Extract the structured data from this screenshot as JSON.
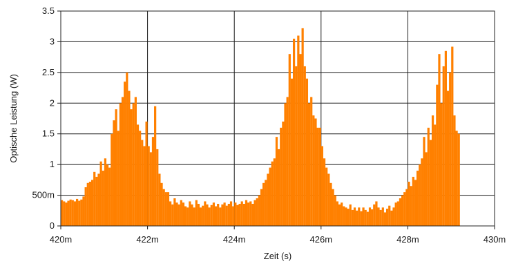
{
  "chart_data": {
    "type": "bar",
    "title": "",
    "xlabel": "Zeit (s)",
    "ylabel": "Optische Leistung (W)",
    "xlim": [
      0.42,
      0.43
    ],
    "ylim": [
      0,
      3.5
    ],
    "grid": true,
    "xticks": [
      {
        "value": 0.42,
        "label": "420m"
      },
      {
        "value": 0.422,
        "label": "422m"
      },
      {
        "value": 0.424,
        "label": "424m"
      },
      {
        "value": 0.426,
        "label": "426m"
      },
      {
        "value": 0.428,
        "label": "428m"
      },
      {
        "value": 0.43,
        "label": "430m"
      }
    ],
    "yticks": [
      {
        "value": 0,
        "label": "0"
      },
      {
        "value": 0.5,
        "label": "500m"
      },
      {
        "value": 1,
        "label": "1"
      },
      {
        "value": 1.5,
        "label": "1.5"
      },
      {
        "value": 2,
        "label": "2"
      },
      {
        "value": 2.5,
        "label": "2.5"
      },
      {
        "value": 3,
        "label": "3"
      },
      {
        "value": 3.5,
        "label": "3.5"
      }
    ],
    "series": [
      {
        "color": "#ff8000",
        "x_start": 0.42,
        "x_step": 5e-05,
        "values": [
          0.42,
          0.4,
          0.38,
          0.41,
          0.43,
          0.42,
          0.4,
          0.44,
          0.41,
          0.43,
          0.48,
          0.63,
          0.7,
          0.72,
          0.75,
          0.88,
          0.8,
          0.85,
          1.05,
          0.9,
          1.1,
          1.0,
          0.95,
          1.5,
          1.72,
          1.9,
          1.55,
          2.0,
          2.1,
          2.35,
          2.5,
          2.2,
          1.9,
          2.0,
          2.1,
          1.65,
          1.55,
          1.4,
          1.3,
          1.7,
          1.3,
          1.2,
          1.45,
          1.95,
          1.25,
          0.85,
          0.7,
          0.6,
          0.55,
          0.55,
          0.4,
          0.35,
          0.45,
          0.38,
          0.35,
          0.42,
          0.38,
          0.32,
          0.3,
          0.4,
          0.35,
          0.3,
          0.42,
          0.36,
          0.3,
          0.33,
          0.4,
          0.35,
          0.3,
          0.34,
          0.38,
          0.32,
          0.36,
          0.3,
          0.35,
          0.38,
          0.33,
          0.36,
          0.4,
          0.32,
          0.38,
          0.34,
          0.36,
          0.4,
          0.36,
          0.42,
          0.38,
          0.4,
          0.36,
          0.42,
          0.45,
          0.5,
          0.6,
          0.7,
          0.75,
          0.85,
          0.95,
          1.05,
          1.1,
          1.45,
          1.25,
          1.6,
          1.7,
          2.0,
          2.1,
          2.8,
          2.4,
          3.05,
          2.6,
          3.1,
          2.8,
          3.22,
          2.6,
          2.4,
          2.0,
          2.1,
          1.8,
          1.75,
          1.6,
          1.6,
          1.3,
          1.1,
          0.95,
          0.85,
          0.7,
          0.6,
          0.5,
          0.4,
          0.35,
          0.38,
          0.32,
          0.3,
          0.28,
          0.35,
          0.26,
          0.3,
          0.25,
          0.3,
          0.24,
          0.3,
          0.26,
          0.23,
          0.3,
          0.27,
          0.35,
          0.4,
          0.3,
          0.26,
          0.3,
          0.22,
          0.28,
          0.33,
          0.25,
          0.3,
          0.38,
          0.4,
          0.45,
          0.5,
          0.55,
          0.6,
          0.72,
          0.65,
          0.8,
          0.75,
          0.9,
          1.0,
          1.1,
          1.45,
          1.2,
          1.6,
          1.4,
          1.8,
          1.65,
          2.3,
          2.8,
          2.0,
          2.6,
          2.85,
          2.2,
          2.5,
          2.92,
          1.8,
          1.55,
          1.5
        ]
      }
    ]
  }
}
